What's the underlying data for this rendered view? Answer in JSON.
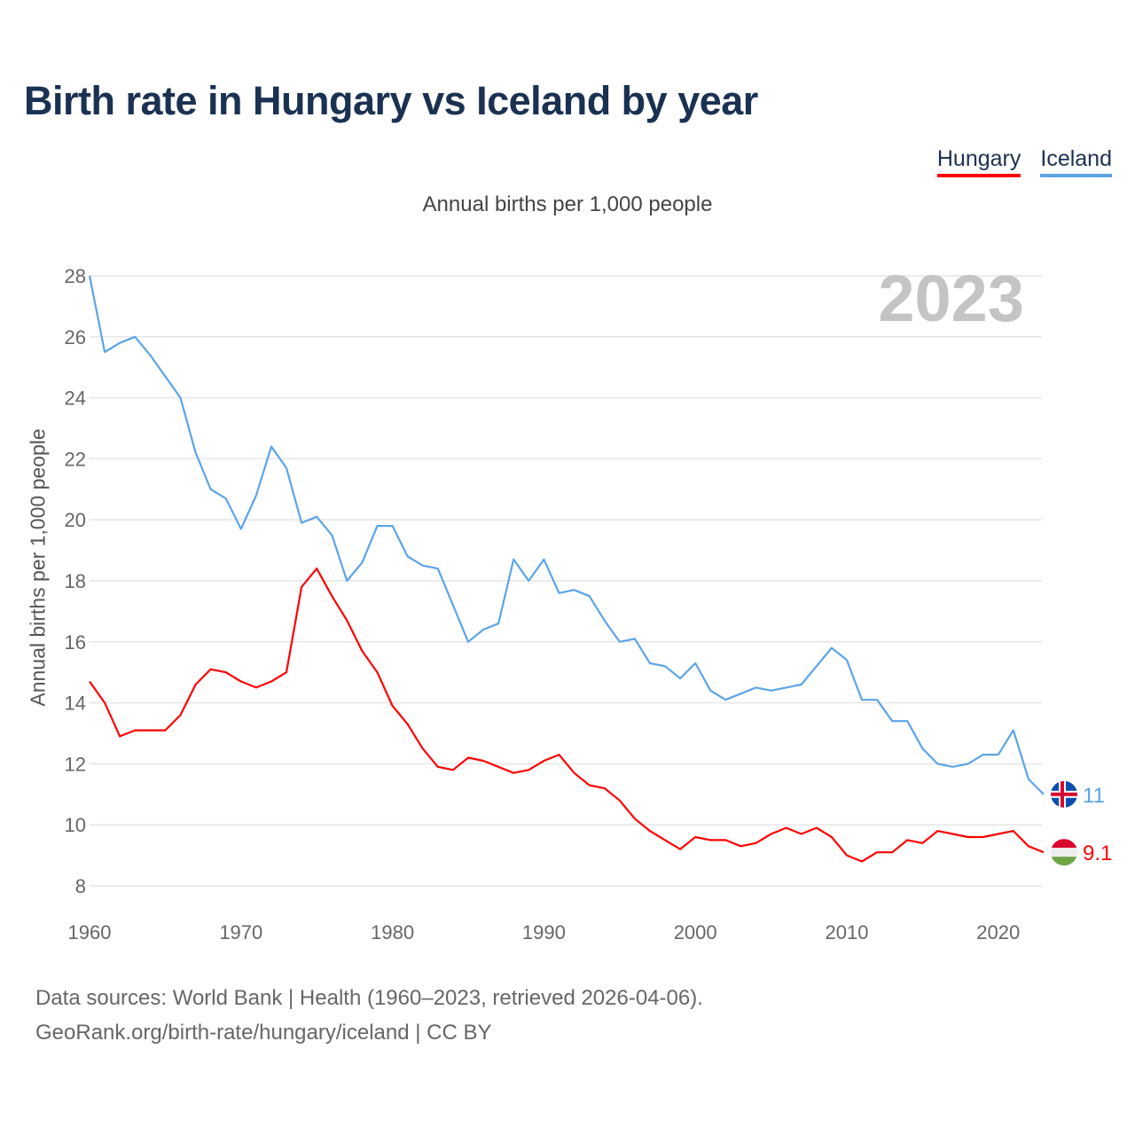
{
  "title": "Birth rate in Hungary vs Iceland by year",
  "subtitle": "Annual births per 1,000 people",
  "footer": {
    "line1": "Data sources: World Bank | Health (1960–2023, retrieved 2026-04-06).",
    "line2": "GeoRank.org/birth-rate/hungary/iceland | CC BY"
  },
  "chart_data": {
    "type": "line",
    "title": "Birth rate in Hungary vs Iceland by year",
    "xlabel": "",
    "ylabel": "Annual births per 1,000 people",
    "year_label": "2023",
    "xlim": [
      1960,
      2023
    ],
    "ylim": [
      8,
      28
    ],
    "xticks": [
      1960,
      1970,
      1980,
      1990,
      2000,
      2010,
      2020
    ],
    "yticks": [
      8,
      10,
      12,
      14,
      16,
      18,
      20,
      22,
      24,
      26,
      28
    ],
    "grid": true,
    "legend_position": "top-right",
    "x_start": 1960,
    "series": [
      {
        "name": "Hungary",
        "color": "#ff0000",
        "end_label": "9.1",
        "flag": "hungary-flag",
        "values": [
          14.7,
          14.0,
          12.9,
          13.1,
          13.1,
          13.1,
          13.6,
          14.6,
          15.1,
          15.0,
          14.7,
          14.5,
          14.7,
          15.0,
          17.8,
          18.4,
          17.5,
          16.7,
          15.7,
          15.0,
          13.9,
          13.3,
          12.5,
          11.9,
          11.8,
          12.2,
          12.1,
          11.9,
          11.7,
          11.8,
          12.1,
          12.3,
          11.7,
          11.3,
          11.2,
          10.8,
          10.2,
          9.8,
          9.5,
          9.2,
          9.6,
          9.5,
          9.5,
          9.3,
          9.4,
          9.7,
          9.9,
          9.7,
          9.9,
          9.6,
          9.0,
          8.8,
          9.1,
          9.1,
          9.5,
          9.4,
          9.8,
          9.7,
          9.6,
          9.6,
          9.7,
          9.8,
          9.3,
          9.1
        ]
      },
      {
        "name": "Iceland",
        "color": "#5ba4e8",
        "end_label": "11",
        "flag": "iceland-flag",
        "values": [
          28.0,
          25.5,
          25.8,
          26.0,
          25.4,
          24.7,
          24.0,
          22.2,
          21.0,
          20.7,
          19.7,
          20.8,
          22.4,
          21.7,
          19.9,
          20.1,
          19.5,
          18.0,
          18.6,
          19.8,
          19.8,
          18.8,
          18.5,
          18.4,
          17.2,
          16.0,
          16.4,
          16.6,
          18.7,
          18.0,
          18.7,
          17.6,
          17.7,
          17.5,
          16.7,
          16.0,
          16.1,
          15.3,
          15.2,
          14.8,
          15.3,
          14.4,
          14.1,
          14.3,
          14.5,
          14.4,
          14.5,
          14.6,
          15.2,
          15.8,
          15.4,
          14.1,
          14.1,
          13.4,
          13.4,
          12.5,
          12.0,
          11.9,
          12.0,
          12.3,
          12.3,
          13.1,
          11.5,
          11.0
        ]
      }
    ]
  }
}
